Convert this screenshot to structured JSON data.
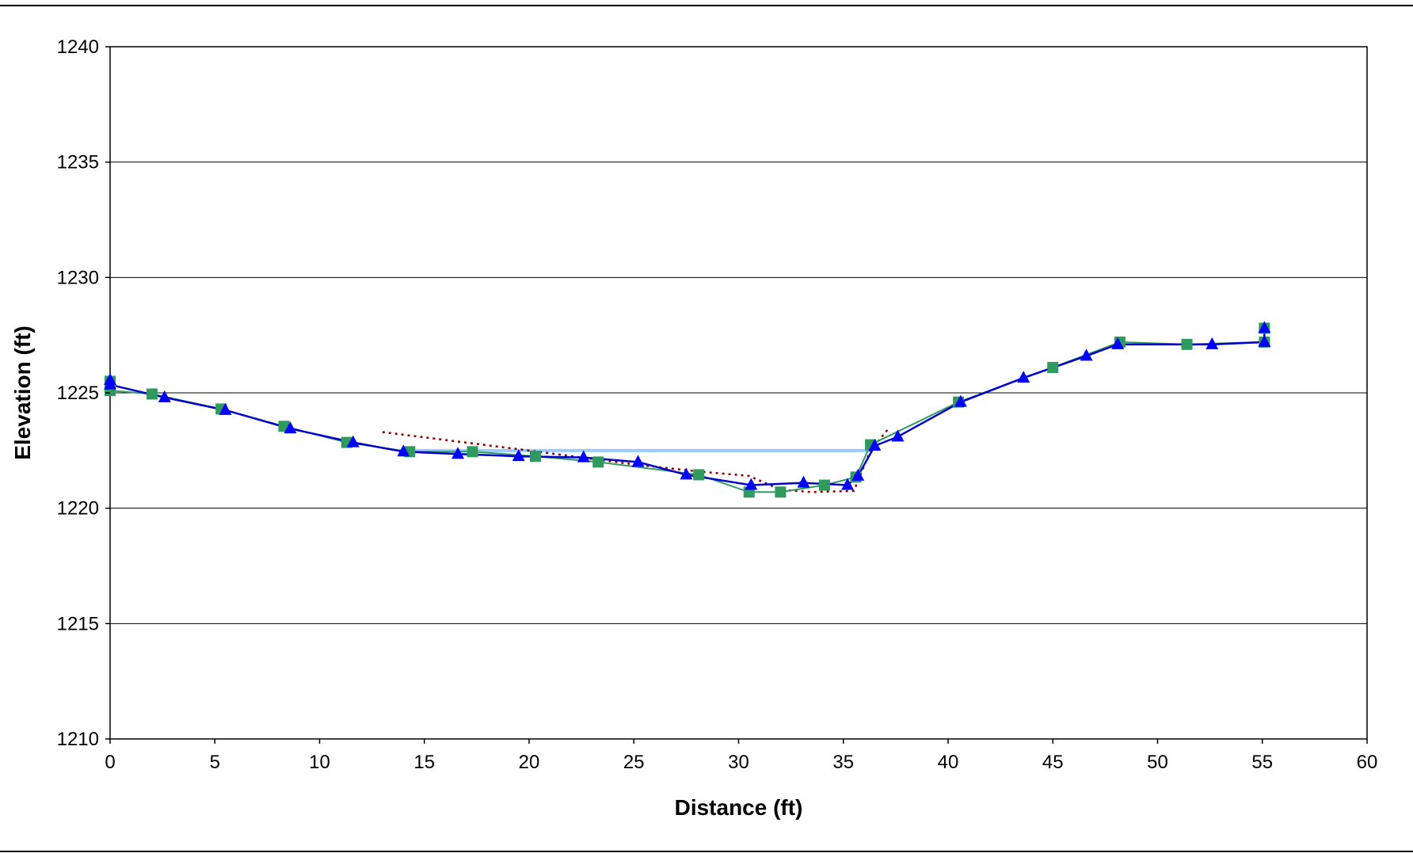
{
  "chart_data": {
    "type": "line",
    "title": "",
    "xlabel": "Distance (ft)",
    "ylabel": "Elevation (ft)",
    "xlim": [
      0,
      60
    ],
    "ylim": [
      1210,
      1240
    ],
    "x_ticks": [
      0,
      5,
      10,
      15,
      20,
      25,
      30,
      35,
      40,
      45,
      50,
      55,
      60
    ],
    "y_ticks": [
      1210,
      1215,
      1220,
      1225,
      1230,
      1235,
      1240
    ],
    "grid": "horizontal",
    "legend": "none",
    "colors": {
      "series_a": "#2E9A5E",
      "series_b": "#0000FF",
      "series_b_line": "#0000CC",
      "water_surface": "#99CCFF",
      "dotted": "#8B0000"
    },
    "series": [
      {
        "marker": "square",
        "points": [
          [
            0,
            1225.5
          ],
          [
            0,
            1225.1
          ],
          [
            2,
            1224.95
          ],
          [
            5.3,
            1224.3
          ],
          [
            8.3,
            1223.55
          ],
          [
            11.3,
            1222.85
          ],
          [
            14.3,
            1222.45
          ],
          [
            17.3,
            1222.45
          ],
          [
            20.3,
            1222.25
          ],
          [
            23.3,
            1222.0
          ],
          [
            28.1,
            1221.45
          ],
          [
            30.5,
            1220.7
          ],
          [
            32.0,
            1220.7
          ],
          [
            34.1,
            1221.0
          ],
          [
            35.6,
            1221.35
          ],
          [
            36.3,
            1222.75
          ],
          [
            40.5,
            1224.6
          ],
          [
            45.0,
            1226.1
          ],
          [
            48.2,
            1227.2
          ],
          [
            51.4,
            1227.1
          ],
          [
            55.1,
            1227.2
          ],
          [
            55.1,
            1227.8
          ]
        ]
      },
      {
        "marker": "triangle",
        "points": [
          [
            0,
            1225.55
          ],
          [
            0,
            1225.35
          ],
          [
            2.6,
            1224.8
          ],
          [
            5.5,
            1224.25
          ],
          [
            8.6,
            1223.45
          ],
          [
            11.6,
            1222.85
          ],
          [
            14.0,
            1222.45
          ],
          [
            16.6,
            1222.35
          ],
          [
            19.5,
            1222.25
          ],
          [
            22.6,
            1222.2
          ],
          [
            25.2,
            1222.0
          ],
          [
            27.5,
            1221.45
          ],
          [
            30.6,
            1221.0
          ],
          [
            33.1,
            1221.1
          ],
          [
            35.2,
            1221.0
          ],
          [
            35.7,
            1221.4
          ],
          [
            36.5,
            1222.7
          ],
          [
            37.6,
            1223.1
          ],
          [
            40.6,
            1224.6
          ],
          [
            43.6,
            1225.65
          ],
          [
            46.6,
            1226.6
          ],
          [
            48.1,
            1227.1
          ],
          [
            52.6,
            1227.1
          ],
          [
            55.1,
            1227.2
          ],
          [
            55.1,
            1227.8
          ]
        ]
      },
      {
        "style": "dotted",
        "points": [
          [
            13.0,
            1223.3
          ],
          [
            20.0,
            1222.5
          ],
          [
            25.0,
            1221.9
          ],
          [
            28.0,
            1221.6
          ],
          [
            30.5,
            1221.4
          ],
          [
            32.0,
            1220.8
          ],
          [
            33.5,
            1220.7
          ],
          [
            35.5,
            1220.75
          ],
          [
            36.3,
            1222.5
          ],
          [
            37.2,
            1223.5
          ]
        ]
      },
      {
        "style": "water-surface",
        "points": [
          [
            14.3,
            1222.5
          ],
          [
            36.3,
            1222.5
          ]
        ]
      }
    ]
  }
}
